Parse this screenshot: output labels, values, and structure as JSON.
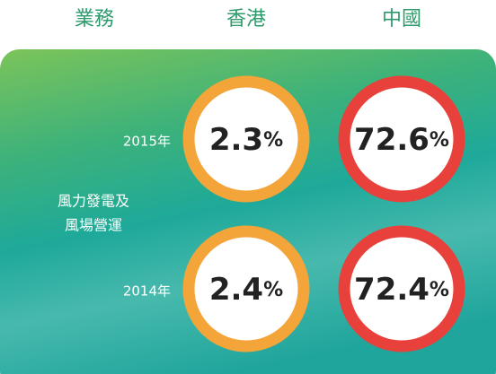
{
  "header": {
    "columns": [
      "業務",
      "香港",
      "中國"
    ]
  },
  "business": [
    "風力發電及",
    "風場營運"
  ],
  "rows": [
    {
      "year": "2015年",
      "hong_kong": 2.3,
      "china": 72.6
    },
    {
      "year": "2014年",
      "hong_kong": 2.4,
      "china": 72.4
    }
  ],
  "unit": "%"
}
